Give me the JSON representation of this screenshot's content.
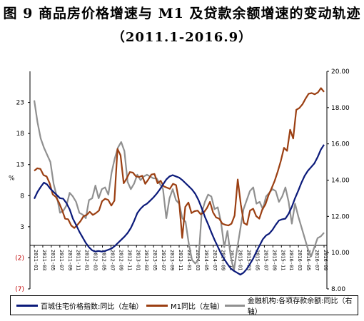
{
  "title": "图 9  商品房价格增速与 M1 及贷款余额增速的变动轨迹",
  "subtitle": "（2011.1-2016.9）",
  "chart_data": {
    "type": "line",
    "y_left": {
      "label": "%",
      "ticks": [
        "23",
        "18",
        "13",
        "8",
        "3",
        "(2)",
        "(7)"
      ],
      "tick_values": [
        23,
        18,
        13,
        8,
        3,
        -2,
        -7
      ],
      "range": [
        -7,
        28
      ]
    },
    "y_right": {
      "ticks": [
        "20.00",
        "18.00",
        "16.00",
        "14.00",
        "12.00",
        "10.00",
        "8.00"
      ],
      "tick_values": [
        20,
        18,
        16,
        14,
        12,
        10,
        8
      ],
      "range": [
        8,
        20
      ]
    },
    "x": {
      "range": [
        "2011-01",
        "2016-09"
      ],
      "tick_labels": [
        "2011-01",
        "2011-03",
        "2011-05",
        "2011-07",
        "2011-09",
        "2011-11",
        "2012-01",
        "2012-03",
        "2012-05",
        "2012-07",
        "2012-09",
        "2012-11",
        "2013-01",
        "2013-03",
        "2013-05",
        "2013-07",
        "2013-09",
        "2013-11",
        "2014-01",
        "2014-03",
        "2014-05",
        "2014-07",
        "2014-09",
        "2014-11",
        "2015-01",
        "2015-03",
        "2015-05",
        "2015-07",
        "2015-09",
        "2015-11",
        "2016-01",
        "2016-03",
        "2016-05",
        "2016-07",
        "2016-09"
      ]
    },
    "series": [
      {
        "name": "百城住宅价格指数:同比（左轴）",
        "axis": "left",
        "color": "#0b1a7a",
        "values": [
          7.5,
          8.6,
          9.4,
          10.1,
          9.8,
          9.1,
          8.6,
          8.1,
          7.6,
          7.5,
          6.8,
          5.8,
          4.3,
          3.3,
          2.2,
          1.3,
          0.4,
          -0.3,
          -0.8,
          -1.0,
          -0.9,
          -1.0,
          -0.9,
          -0.7,
          -0.5,
          -0.1,
          0.4,
          0.9,
          1.4,
          2.0,
          2.8,
          3.9,
          5.2,
          5.9,
          6.4,
          6.7,
          7.2,
          7.7,
          8.3,
          9.0,
          9.8,
          10.6,
          11.1,
          11.3,
          11.1,
          10.9,
          10.5,
          10.0,
          9.5,
          9.0,
          8.3,
          7.3,
          6.0,
          4.6,
          3.4,
          2.1,
          0.9,
          -0.2,
          -1.3,
          -2.2,
          -3.0,
          -3.7,
          -4.1,
          -4.4,
          -4.7,
          -4.4,
          -3.8,
          -3.0,
          -2.1,
          -1.0,
          0.0,
          1.0,
          1.6,
          1.9,
          2.5,
          3.3,
          4.0,
          4.2,
          4.3,
          5.1,
          6.2,
          7.6,
          8.8,
          10.1,
          11.2,
          12.0,
          12.6,
          13.2,
          14.2,
          15.4,
          16.2
        ]
      },
      {
        "name": "M1同比（左轴）",
        "axis": "left",
        "color": "#9b3f12",
        "values": [
          12.0,
          12.4,
          12.3,
          11.3,
          11.1,
          10.0,
          8.2,
          7.8,
          6.9,
          5.7,
          4.3,
          4.2,
          3.2,
          2.8,
          3.3,
          3.9,
          4.7,
          4.9,
          5.4,
          4.9,
          5.2,
          5.6,
          7.1,
          7.5,
          7.3,
          6.4,
          7.2,
          15.5,
          14.5,
          10.0,
          10.8,
          11.8,
          11.7,
          11.1,
          11.0,
          11.2,
          9.9,
          10.6,
          11.4,
          11.5,
          10.0,
          10.4,
          9.5,
          9.3,
          9.1,
          9.9,
          9.7,
          7.0,
          1.2,
          6.2,
          6.9,
          5.2,
          5.5,
          5.6,
          5.0,
          5.3,
          6.0,
          7.0,
          5.3,
          4.5,
          4.3,
          3.5,
          3.3,
          3.2,
          3.5,
          4.8,
          10.6,
          6.6,
          3.6,
          3.3,
          5.6,
          5.9,
          4.7,
          4.3,
          5.8,
          6.6,
          8.1,
          9.2,
          10.4,
          11.9,
          13.6,
          15.7,
          15.2,
          18.6,
          17.2,
          21.8,
          22.1,
          22.7,
          23.6,
          24.4,
          24.5,
          24.3,
          24.6,
          25.3,
          24.7
        ]
      },
      {
        "name": "金融机构:各项存款余额:同比（右轴）",
        "axis": "right",
        "color": "#909090",
        "values": [
          18.4,
          17.2,
          16.3,
          15.8,
          15.4,
          15.0,
          13.8,
          13.1,
          12.2,
          12.3,
          12.6,
          13.3,
          13.1,
          12.8,
          12.2,
          12.1,
          11.9,
          12.9,
          13.0,
          13.7,
          13.0,
          13.5,
          13.6,
          13.2,
          14.4,
          15.2,
          15.8,
          16.1,
          15.6,
          13.9,
          13.5,
          13.8,
          14.3,
          14.0,
          14.2,
          14.3,
          14.2,
          14.1,
          14.1,
          13.8,
          13.5,
          11.9,
          13.0,
          13.5,
          12.9,
          12.7,
          11.9,
          11.7,
          10.5,
          9.6,
          9.4,
          9.6,
          12.2,
          12.8,
          13.2,
          13.1,
          12.4,
          12.5,
          11.7,
          10.3,
          11.2,
          9.8,
          9.0,
          10.2,
          11.3,
          12.4,
          12.9,
          13.4,
          13.6,
          12.7,
          12.8,
          12.4,
          13.1,
          13.3,
          13.5,
          13.4,
          12.8,
          13.1,
          13.6,
          12.8,
          11.6,
          12.7,
          12.0,
          11.4,
          10.8,
          10.2,
          9.8,
          10.3,
          10.8,
          10.9,
          11.1
        ]
      }
    ],
    "grid": false,
    "legend": "bottom"
  },
  "legend": [
    {
      "label": "百城住宅价格指数:同比（左轴）",
      "color": "#0b1a7a"
    },
    {
      "label": "M1同比（左轴）",
      "color": "#9b3f12"
    },
    {
      "label": "金融机构:各项存款余额:同比（右轴）",
      "color": "#909090"
    }
  ]
}
